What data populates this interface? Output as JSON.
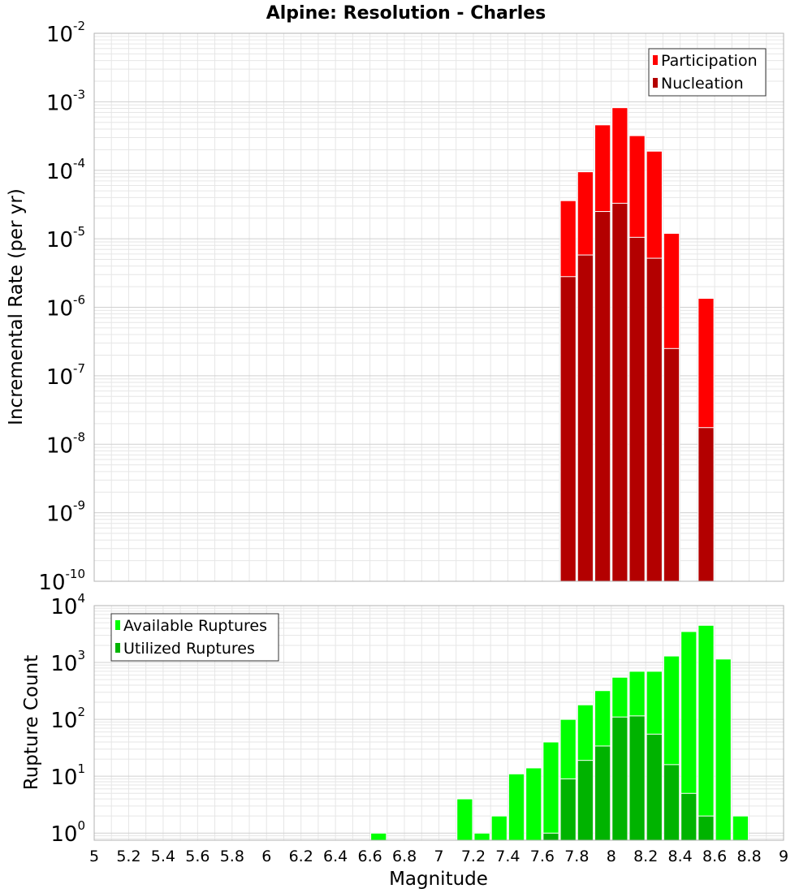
{
  "title": "Alpine: Resolution - Charles",
  "xlabel": "Magnitude",
  "x_ticks": [
    "5",
    "5.2",
    "5.4",
    "5.6",
    "5.8",
    "6",
    "6.2",
    "6.4",
    "6.6",
    "6.8",
    "7",
    "7.2",
    "7.4",
    "7.6",
    "7.8",
    "8",
    "8.2",
    "8.4",
    "8.6",
    "8.8",
    "9"
  ],
  "colors": {
    "participation": "#ff0000",
    "nucleation": "#b30000",
    "available": "#00ff00",
    "utilized": "#00b300",
    "grid": "#e6e6e6",
    "frame": "#b3b3b3"
  },
  "chart_data": [
    {
      "type": "bar",
      "ylabel": "Incremental Rate (per yr)",
      "yscale": "log",
      "xlim": [
        5,
        9
      ],
      "ylim": [
        1e-10,
        0.01
      ],
      "y_tick_bases": [
        "10",
        "10",
        "10",
        "10",
        "10",
        "10",
        "10",
        "10",
        "10"
      ],
      "y_tick_exponents": [
        "-10",
        "-9",
        "-8",
        "-7",
        "-6",
        "-5",
        "-4",
        "-3",
        "-2"
      ],
      "legend": {
        "position": "top-right",
        "entries": [
          "Participation",
          "Nucleation"
        ]
      },
      "x": [
        7.75,
        7.85,
        7.95,
        8.05,
        8.15,
        8.25,
        8.35,
        8.55
      ],
      "series": [
        {
          "name": "Participation",
          "values": [
            3.6e-05,
            9.5e-05,
            0.00046,
            0.00082,
            0.00032,
            0.00019,
            1.2e-05,
            1.35e-06
          ]
        },
        {
          "name": "Nucleation",
          "values": [
            2.8e-06,
            5.8e-06,
            2.5e-05,
            3.3e-05,
            1.05e-05,
            5.2e-06,
            2.5e-07,
            1.75e-08
          ]
        }
      ]
    },
    {
      "type": "bar",
      "ylabel": "Rupture Count",
      "yscale": "log",
      "xlim": [
        5,
        9
      ],
      "ylim": [
        0.75,
        10000
      ],
      "y_tick_bases": [
        "10",
        "10",
        "10",
        "10",
        "10"
      ],
      "y_tick_exponents": [
        "0",
        "1",
        "2",
        "3",
        "4"
      ],
      "legend": {
        "position": "top-left",
        "entries": [
          "Available Ruptures",
          "Utilized Ruptures"
        ]
      },
      "x": [
        6.65,
        7.15,
        7.25,
        7.35,
        7.45,
        7.55,
        7.65,
        7.75,
        7.85,
        7.95,
        8.05,
        8.15,
        8.25,
        8.35,
        8.45,
        8.55,
        8.65,
        8.75
      ],
      "series": [
        {
          "name": "Available Ruptures",
          "values": [
            1,
            4,
            1,
            2,
            11,
            14,
            40,
            100,
            180,
            320,
            550,
            700,
            700,
            1300,
            3500,
            4500,
            1150,
            2
          ]
        },
        {
          "name": "Utilized Ruptures",
          "values": [
            0,
            0,
            0,
            0,
            0,
            0,
            1,
            9,
            19,
            34,
            110,
            115,
            55,
            16,
            5,
            2,
            0,
            0
          ]
        }
      ]
    }
  ]
}
